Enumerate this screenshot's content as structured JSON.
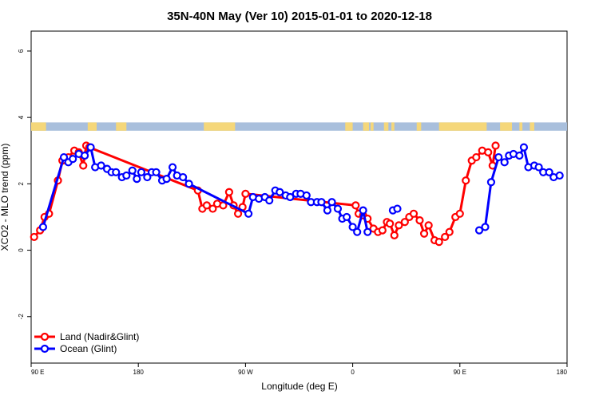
{
  "chart_data": {
    "type": "line",
    "title": "35N-40N May (Ver 10)   2015-01-01 to 2020-12-18",
    "xlabel": "Longitude (deg E)",
    "ylabel": "XCO2 - MLO trend (ppm)",
    "xlim": [
      90,
      450
    ],
    "ylim": [
      -3.4,
      6.6
    ],
    "x_ticks": [
      {
        "value": 90,
        "label": "90 E"
      },
      {
        "value": 162,
        "label": "180"
      },
      {
        "value": 234,
        "label": "90 W"
      },
      {
        "value": 306,
        "label": "0"
      },
      {
        "value": 378,
        "label": "90 E"
      },
      {
        "value": 450,
        "label": "180"
      }
    ],
    "y_ticks": [
      {
        "value": -2,
        "label": "-2"
      },
      {
        "value": 0,
        "label": "0"
      },
      {
        "value": 2,
        "label": "2"
      },
      {
        "value": 4,
        "label": "4"
      },
      {
        "value": 6,
        "label": "6"
      }
    ],
    "grid": false,
    "legend_position": "bottom-left",
    "land_mask": {
      "y_range": [
        3.6,
        3.85
      ],
      "land_color": "#f5d77a",
      "ocean_color": "#a9bfdc",
      "land_segments": [
        [
          90,
          100
        ],
        [
          128,
          134
        ],
        [
          147,
          154
        ],
        [
          206,
          227
        ],
        [
          301,
          306
        ],
        [
          313,
          317
        ],
        [
          318,
          320
        ],
        [
          327,
          330
        ],
        [
          332,
          334
        ],
        [
          349,
          352
        ],
        [
          364,
          396
        ],
        [
          405,
          413
        ],
        [
          418,
          420
        ],
        [
          425,
          428
        ]
      ]
    },
    "series": [
      {
        "name": "Land (Nadir&Glint)",
        "color": "#ff0000",
        "segments": [
          [
            [
              92,
              0.4
            ],
            [
              96,
              0.6
            ],
            [
              99,
              1.0
            ],
            [
              102,
              1.1
            ],
            [
              108,
              2.1
            ],
            [
              111,
              2.7
            ],
            [
              115,
              2.8
            ],
            [
              119,
              3.0
            ],
            [
              122,
              2.95
            ],
            [
              125,
              2.55
            ],
            [
              127,
              3.15
            ],
            [
              129,
              3.1
            ],
            [
              202,
              1.8
            ],
            [
              205,
              1.25
            ],
            [
              208,
              1.35
            ],
            [
              212,
              1.25
            ],
            [
              215,
              1.4
            ],
            [
              219,
              1.35
            ],
            [
              223,
              1.75
            ],
            [
              226,
              1.35
            ],
            [
              229,
              1.1
            ],
            [
              232,
              1.3
            ],
            [
              234,
              1.7
            ],
            [
              308,
              1.35
            ],
            [
              310,
              1.1
            ],
            [
              313,
              1.05
            ],
            [
              316,
              0.95
            ],
            [
              320,
              0.65
            ],
            [
              323,
              0.55
            ],
            [
              326,
              0.6
            ],
            [
              329,
              0.85
            ],
            [
              331,
              0.8
            ],
            [
              334,
              0.45
            ],
            [
              337,
              0.75
            ],
            [
              341,
              0.85
            ],
            [
              344,
              1.0
            ],
            [
              347,
              1.1
            ],
            [
              351,
              0.9
            ],
            [
              354,
              0.5
            ],
            [
              357,
              0.75
            ],
            [
              361,
              0.3
            ],
            [
              364,
              0.25
            ],
            [
              368,
              0.4
            ],
            [
              371,
              0.55
            ],
            [
              375,
              1.0
            ],
            [
              378,
              1.1
            ],
            [
              382,
              2.1
            ],
            [
              386,
              2.7
            ],
            [
              389,
              2.8
            ],
            [
              393,
              3.0
            ],
            [
              397,
              2.95
            ],
            [
              400,
              2.55
            ],
            [
              402,
              3.15
            ]
          ]
        ]
      },
      {
        "name": "Ocean (Glint)",
        "color": "#0000ff",
        "segments": [
          [
            [
              98,
              0.7
            ],
            [
              112,
              2.8
            ],
            [
              115,
              2.65
            ],
            [
              118,
              2.75
            ],
            [
              122,
              2.9
            ],
            [
              126,
              2.85
            ],
            [
              130,
              3.1
            ],
            [
              133,
              2.5
            ],
            [
              137,
              2.55
            ],
            [
              141,
              2.45
            ],
            [
              144,
              2.35
            ],
            [
              147,
              2.35
            ],
            [
              151,
              2.2
            ],
            [
              154,
              2.25
            ],
            [
              158,
              2.4
            ],
            [
              161,
              2.15
            ],
            [
              164,
              2.35
            ],
            [
              168,
              2.2
            ],
            [
              171,
              2.35
            ],
            [
              174,
              2.35
            ],
            [
              178,
              2.1
            ],
            [
              181,
              2.15
            ],
            [
              185,
              2.5
            ],
            [
              188,
              2.25
            ],
            [
              192,
              2.2
            ],
            [
              196,
              2.0
            ],
            [
              236,
              1.1
            ],
            [
              239,
              1.6
            ],
            [
              243,
              1.55
            ],
            [
              247,
              1.6
            ],
            [
              250,
              1.5
            ],
            [
              254,
              1.8
            ],
            [
              257,
              1.75
            ],
            [
              261,
              1.65
            ],
            [
              264,
              1.6
            ],
            [
              268,
              1.7
            ],
            [
              271,
              1.7
            ],
            [
              275,
              1.65
            ],
            [
              278,
              1.45
            ],
            [
              282,
              1.45
            ],
            [
              285,
              1.45
            ],
            [
              289,
              1.2
            ],
            [
              292,
              1.45
            ],
            [
              296,
              1.25
            ],
            [
              299,
              0.95
            ],
            [
              302,
              1.0
            ],
            [
              306,
              0.7
            ],
            [
              309,
              0.55
            ],
            [
              313,
              1.2
            ],
            [
              316,
              0.55
            ]
          ],
          [
            [
              333,
              1.2
            ],
            [
              336,
              1.25
            ]
          ],
          [
            [
              391,
              0.6
            ],
            [
              395,
              0.7
            ],
            [
              399,
              2.05
            ],
            [
              404,
              2.8
            ],
            [
              408,
              2.65
            ],
            [
              411,
              2.85
            ],
            [
              414,
              2.9
            ],
            [
              418,
              2.85
            ],
            [
              421,
              3.1
            ],
            [
              424,
              2.5
            ],
            [
              428,
              2.55
            ],
            [
              431,
              2.5
            ],
            [
              434,
              2.35
            ],
            [
              438,
              2.35
            ],
            [
              441,
              2.2
            ],
            [
              445,
              2.25
            ]
          ]
        ]
      }
    ]
  }
}
